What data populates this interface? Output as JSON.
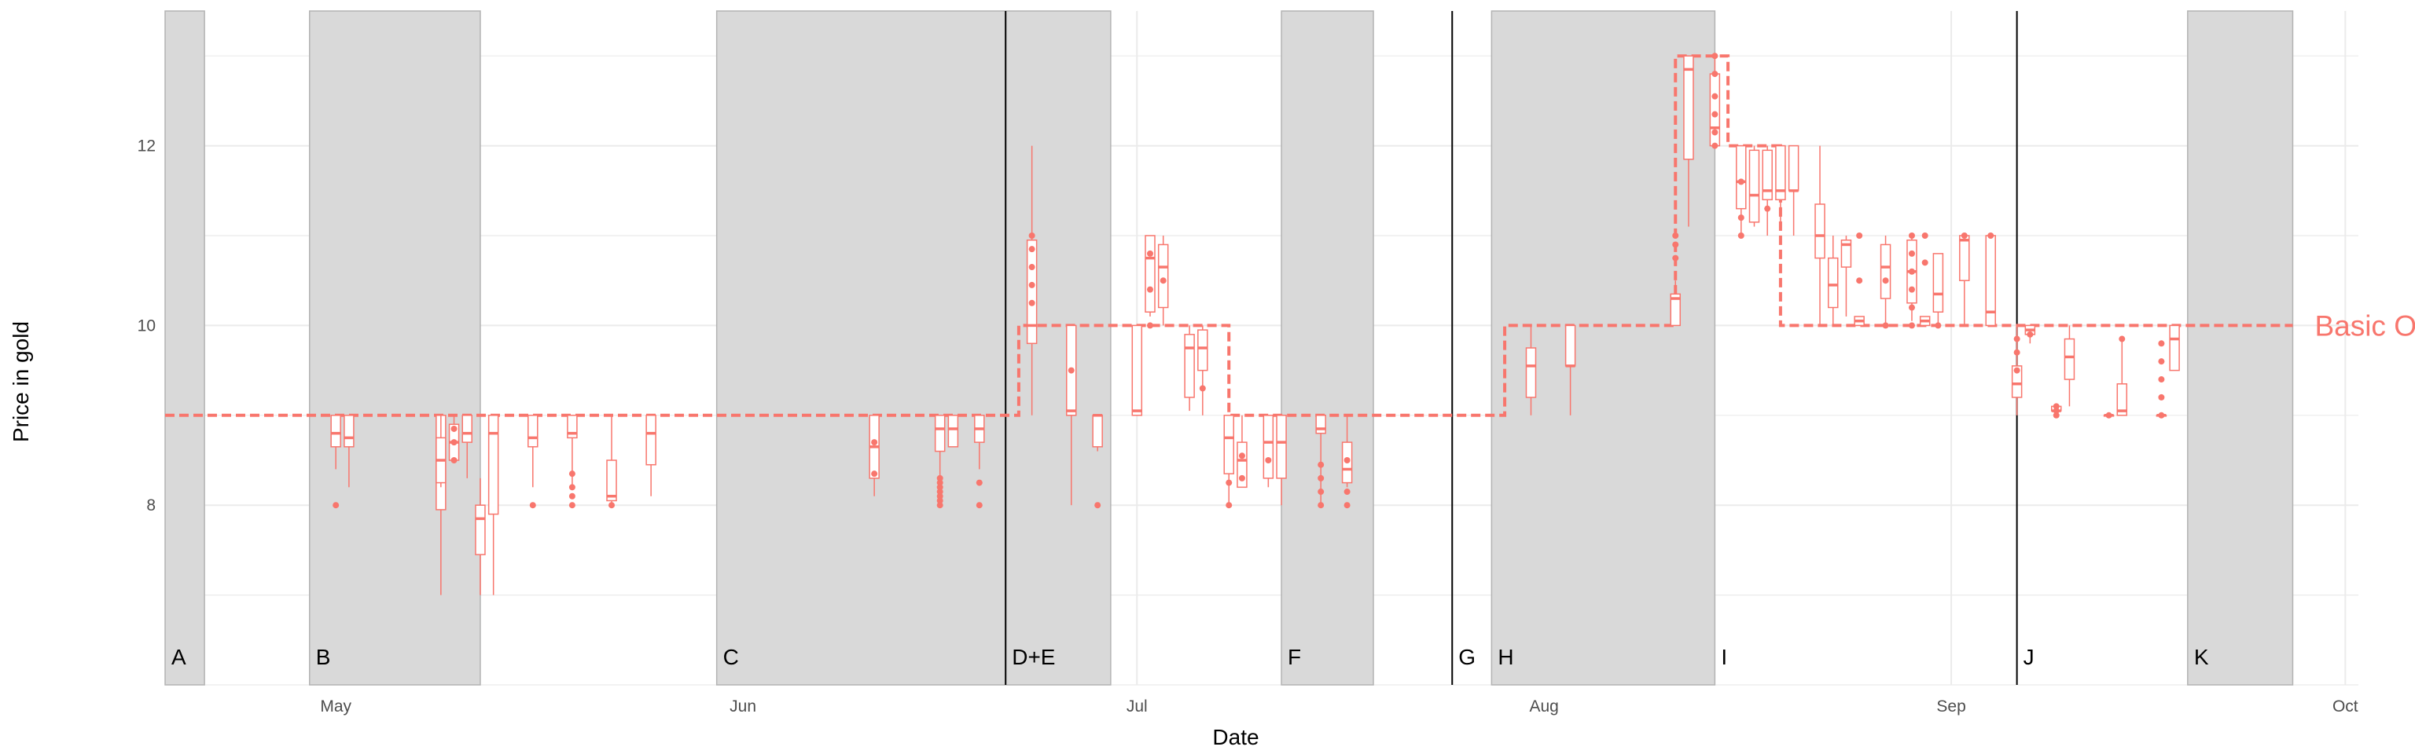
{
  "chart_data": {
    "type": "box",
    "title": "",
    "xlabel": "Date",
    "ylabel": "Price in gold",
    "ylim": [
      6,
      13.5
    ],
    "xlim": [
      "2022-04-18",
      "2022-10-02"
    ],
    "y_ticks": [
      8,
      10,
      12
    ],
    "x_ticks": [
      {
        "date": "2022-05-01",
        "label": "May"
      },
      {
        "date": "2022-06-01",
        "label": "Jun"
      },
      {
        "date": "2022-07-01",
        "label": "Jul"
      },
      {
        "date": "2022-08-01",
        "label": "Aug"
      },
      {
        "date": "2022-09-01",
        "label": "Sep"
      },
      {
        "date": "2022-10-01",
        "label": "Oct"
      }
    ],
    "grid": true,
    "colors": {
      "series": "#F8766D",
      "period_fill": "#d9d9d9",
      "period_edge": "#b3b3b3",
      "event_line": "#000000",
      "grid": "#ebebeb"
    },
    "periods": [
      {
        "label": "A",
        "start": "2022-04-18",
        "end": "2022-04-21"
      },
      {
        "label": "B",
        "start": "2022-04-29",
        "end": "2022-05-12"
      },
      {
        "label": "C",
        "start": "2022-05-30",
        "end": "2022-06-21"
      },
      {
        "label": "D+E",
        "start": "2022-06-21",
        "end": "2022-06-29"
      },
      {
        "label": "F",
        "start": "2022-07-12",
        "end": "2022-07-19"
      },
      {
        "label": "G",
        "start": "2022-07-25",
        "end": "2022-07-28"
      },
      {
        "label": "H",
        "start": "2022-07-28",
        "end": "2022-08-14"
      },
      {
        "label": "I",
        "start": "2022-08-14",
        "end": "2022-09-06"
      },
      {
        "label": "J",
        "start": "2022-09-06",
        "end": "2022-09-19"
      },
      {
        "label": "K",
        "start": "2022-09-19",
        "end": "2022-09-27"
      }
    ],
    "shaded_periods": [
      {
        "start": "2022-04-18",
        "end": "2022-04-21"
      },
      {
        "start": "2022-04-29",
        "end": "2022-05-12"
      },
      {
        "start": "2022-05-30",
        "end": "2022-06-29"
      },
      {
        "start": "2022-07-12",
        "end": "2022-07-19"
      },
      {
        "start": "2022-07-28",
        "end": "2022-08-14"
      },
      {
        "start": "2022-09-19",
        "end": "2022-09-27"
      }
    ],
    "event_lines": [
      "2022-06-21",
      "2022-07-25",
      "2022-09-06"
    ],
    "series": [
      {
        "name": "Basic Oreha",
        "step": [
          {
            "date": "2022-04-18",
            "value": 9
          },
          {
            "date": "2022-06-22",
            "value": 10
          },
          {
            "date": "2022-07-08",
            "value": 9
          },
          {
            "date": "2022-07-29",
            "value": 10
          },
          {
            "date": "2022-08-11",
            "value": 13
          },
          {
            "date": "2022-08-15",
            "value": 12
          },
          {
            "date": "2022-08-19",
            "value": 10
          },
          {
            "date": "2022-09-01",
            "value": 10
          },
          {
            "date": "2022-09-27",
            "value": 10
          }
        ],
        "boxes": [
          {
            "date": "2022-05-01",
            "min": 8.4,
            "q1": 8.65,
            "median": 8.8,
            "q3": 9.0,
            "max": 9.0,
            "outliers": [
              8.0
            ]
          },
          {
            "date": "2022-05-02",
            "min": 8.2,
            "q1": 8.65,
            "median": 8.75,
            "q3": 9.0,
            "max": 9.0,
            "outliers": []
          },
          {
            "date": "2022-05-09",
            "min": 7.0,
            "q1": 7.95,
            "median": 8.55,
            "q3": 9.0,
            "max": 9.0,
            "outliers": []
          },
          {
            "date": "2022-05-09",
            "min": 8.2,
            "q1": 8.25,
            "median": 8.5,
            "q3": 8.75,
            "max": 9.0,
            "outliers": []
          },
          {
            "date": "2022-05-10",
            "min": 8.5,
            "q1": 8.5,
            "median": 8.7,
            "q3": 8.9,
            "max": 9.0,
            "outliers": [
              8.5,
              8.7,
              8.85
            ]
          },
          {
            "date": "2022-05-11",
            "min": 8.3,
            "q1": 8.7,
            "median": 8.8,
            "q3": 9.0,
            "max": 9.0,
            "outliers": []
          },
          {
            "date": "2022-05-12",
            "min": 7.0,
            "q1": 7.45,
            "median": 7.85,
            "q3": 8.0,
            "max": 8.3,
            "outliers": []
          },
          {
            "date": "2022-05-13",
            "min": 7.0,
            "q1": 7.9,
            "median": 8.8,
            "q3": 9.0,
            "max": 9.0,
            "outliers": []
          },
          {
            "date": "2022-05-16",
            "min": 8.2,
            "q1": 8.65,
            "median": 8.75,
            "q3": 9.0,
            "max": 9.0,
            "outliers": [
              8.0
            ]
          },
          {
            "date": "2022-05-19",
            "min": 8.2,
            "q1": 8.75,
            "median": 8.8,
            "q3": 9.0,
            "max": 9.0,
            "outliers": [
              8.1,
              8.2,
              8.35,
              8.0
            ]
          },
          {
            "date": "2022-05-22",
            "min": 8.0,
            "q1": 8.05,
            "median": 8.1,
            "q3": 8.5,
            "max": 9.0,
            "outliers": [
              8.0
            ]
          },
          {
            "date": "2022-05-25",
            "min": 8.1,
            "q1": 8.45,
            "median": 8.8,
            "q3": 9.0,
            "max": 9.0,
            "outliers": []
          },
          {
            "date": "2022-06-11",
            "min": 8.1,
            "q1": 8.3,
            "median": 8.65,
            "q3": 9.0,
            "max": 9.0,
            "outliers": [
              8.35,
              8.7
            ]
          },
          {
            "date": "2022-06-16",
            "min": 8.1,
            "q1": 8.6,
            "median": 8.85,
            "q3": 9.0,
            "max": 9.0,
            "outliers": [
              8.0,
              8.05,
              8.1,
              8.15,
              8.2,
              8.25,
              8.3
            ]
          },
          {
            "date": "2022-06-17",
            "min": 8.65,
            "q1": 8.65,
            "median": 8.85,
            "q3": 9.0,
            "max": 9.0,
            "outliers": []
          },
          {
            "date": "2022-06-19",
            "min": 8.4,
            "q1": 8.7,
            "median": 8.85,
            "q3": 9.0,
            "max": 9.0,
            "outliers": [
              8.0,
              8.25
            ]
          },
          {
            "date": "2022-06-23",
            "min": 9.0,
            "q1": 9.8,
            "median": 10.0,
            "q3": 10.95,
            "max": 12.0,
            "outliers": [
              10.25,
              10.45,
              10.65,
              10.85,
              11.0
            ]
          },
          {
            "date": "2022-06-26",
            "min": 8.0,
            "q1": 9.0,
            "median": 9.05,
            "q3": 10.0,
            "max": 10.0,
            "outliers": [
              9.5
            ]
          },
          {
            "date": "2022-06-28",
            "min": 8.6,
            "q1": 8.65,
            "median": 9.0,
            "q3": 9.0,
            "max": 9.0,
            "outliers": [
              8.0
            ]
          },
          {
            "date": "2022-07-01",
            "min": 9.0,
            "q1": 9.0,
            "median": 9.05,
            "q3": 10.0,
            "max": 10.0,
            "outliers": []
          },
          {
            "date": "2022-07-02",
            "min": 10.1,
            "q1": 10.15,
            "median": 10.75,
            "q3": 11.0,
            "max": 11.0,
            "outliers": [
              10.0,
              10.4,
              10.8
            ]
          },
          {
            "date": "2022-07-03",
            "min": 10.0,
            "q1": 10.2,
            "median": 10.65,
            "q3": 10.9,
            "max": 11.0,
            "outliers": [
              10.5
            ]
          },
          {
            "date": "2022-07-05",
            "min": 9.05,
            "q1": 9.2,
            "median": 9.75,
            "q3": 9.9,
            "max": 10.0,
            "outliers": []
          },
          {
            "date": "2022-07-06",
            "min": 9.0,
            "q1": 9.5,
            "median": 9.75,
            "q3": 9.95,
            "max": 10.0,
            "outliers": [
              9.3
            ]
          },
          {
            "date": "2022-07-08",
            "min": 8.0,
            "q1": 8.35,
            "median": 8.75,
            "q3": 9.0,
            "max": 9.0,
            "outliers": [
              8.0,
              8.25
            ]
          },
          {
            "date": "2022-07-09",
            "min": 8.2,
            "q1": 8.2,
            "median": 8.5,
            "q3": 8.7,
            "max": 9.0,
            "outliers": [
              8.3,
              8.55
            ]
          },
          {
            "date": "2022-07-11",
            "min": 8.2,
            "q1": 8.3,
            "median": 8.7,
            "q3": 9.0,
            "max": 9.0,
            "outliers": [
              8.5
            ]
          },
          {
            "date": "2022-07-12",
            "min": 8.0,
            "q1": 8.3,
            "median": 8.7,
            "q3": 9.0,
            "max": 9.0,
            "outliers": []
          },
          {
            "date": "2022-07-15",
            "min": 8.0,
            "q1": 8.8,
            "median": 8.85,
            "q3": 9.0,
            "max": 9.0,
            "outliers": [
              8.0,
              8.15,
              8.3,
              8.45
            ]
          },
          {
            "date": "2022-07-17",
            "min": 8.2,
            "q1": 8.25,
            "median": 8.4,
            "q3": 8.7,
            "max": 9.0,
            "outliers": [
              8.0,
              8.15,
              8.5
            ]
          },
          {
            "date": "2022-07-31",
            "min": 9.0,
            "q1": 9.2,
            "median": 9.55,
            "q3": 9.75,
            "max": 10.0,
            "outliers": []
          },
          {
            "date": "2022-08-03",
            "min": 9.0,
            "q1": 9.55,
            "median": 9.55,
            "q3": 10.0,
            "max": 10.0,
            "outliers": []
          },
          {
            "date": "2022-08-11",
            "min": 10.0,
            "q1": 10.0,
            "median": 10.3,
            "q3": 10.35,
            "max": 10.5,
            "outliers": [
              10.75,
              10.9,
              11.0
            ]
          },
          {
            "date": "2022-08-12",
            "min": 11.1,
            "q1": 11.85,
            "median": 12.85,
            "q3": 13.0,
            "max": 13.0,
            "outliers": []
          },
          {
            "date": "2022-08-14",
            "min": 12.0,
            "q1": 12.0,
            "median": 12.2,
            "q3": 12.8,
            "max": 13.0,
            "outliers": [
              12.0,
              12.15,
              12.35,
              12.55,
              12.8,
              13.0
            ]
          },
          {
            "date": "2022-08-16",
            "min": 11.0,
            "q1": 11.3,
            "median": 11.6,
            "q3": 12.0,
            "max": 12.0,
            "outliers": [
              11.0,
              11.2,
              11.6
            ]
          },
          {
            "date": "2022-08-17",
            "min": 11.1,
            "q1": 11.15,
            "median": 11.45,
            "q3": 11.95,
            "max": 12.0,
            "outliers": []
          },
          {
            "date": "2022-08-18",
            "min": 11.0,
            "q1": 11.4,
            "median": 11.5,
            "q3": 11.95,
            "max": 12.0,
            "outliers": [
              11.3
            ]
          },
          {
            "date": "2022-08-19",
            "min": 11.1,
            "q1": 11.4,
            "median": 11.5,
            "q3": 12.0,
            "max": 12.0,
            "outliers": []
          },
          {
            "date": "2022-08-20",
            "min": 11.0,
            "q1": 11.5,
            "median": 11.5,
            "q3": 12.0,
            "max": 12.0,
            "outliers": []
          },
          {
            "date": "2022-08-22",
            "min": 10.0,
            "q1": 10.75,
            "median": 11.0,
            "q3": 11.35,
            "max": 12.0,
            "outliers": []
          },
          {
            "date": "2022-08-23",
            "min": 10.0,
            "q1": 10.2,
            "median": 10.45,
            "q3": 10.75,
            "max": 11.0,
            "outliers": []
          },
          {
            "date": "2022-08-24",
            "min": 10.1,
            "q1": 10.65,
            "median": 10.9,
            "q3": 10.95,
            "max": 11.0,
            "outliers": []
          },
          {
            "date": "2022-08-25",
            "min": 10.0,
            "q1": 10.0,
            "median": 10.05,
            "q3": 10.1,
            "max": 10.1,
            "outliers": [
              10.5,
              11.0
            ]
          },
          {
            "date": "2022-08-27",
            "min": 10.0,
            "q1": 10.3,
            "median": 10.65,
            "q3": 10.9,
            "max": 11.0,
            "outliers": [
              10.0,
              10.5
            ]
          },
          {
            "date": "2022-08-29",
            "min": 10.05,
            "q1": 10.25,
            "median": 10.6,
            "q3": 10.95,
            "max": 11.0,
            "outliers": [
              10.0,
              10.2,
              10.4,
              10.6,
              10.8,
              11.0
            ]
          },
          {
            "date": "2022-08-30",
            "min": 10.0,
            "q1": 10.0,
            "median": 10.05,
            "q3": 10.1,
            "max": 10.1,
            "outliers": [
              10.7,
              11.0
            ]
          },
          {
            "date": "2022-08-31",
            "min": 10.0,
            "q1": 10.15,
            "median": 10.35,
            "q3": 10.8,
            "max": 10.8,
            "outliers": [
              10.0
            ]
          },
          {
            "date": "2022-09-02",
            "min": 10.0,
            "q1": 10.5,
            "median": 10.95,
            "q3": 11.0,
            "max": 11.0,
            "outliers": [
              11.0
            ]
          },
          {
            "date": "2022-09-04",
            "min": 10.0,
            "q1": 10.0,
            "median": 10.15,
            "q3": 11.0,
            "max": 11.0,
            "outliers": [
              11.0
            ]
          },
          {
            "date": "2022-09-06",
            "min": 9.0,
            "q1": 9.2,
            "median": 9.35,
            "q3": 9.55,
            "max": 10.0,
            "outliers": [
              9.5,
              9.7,
              9.85
            ]
          },
          {
            "date": "2022-09-07",
            "min": 9.8,
            "q1": 9.9,
            "median": 9.95,
            "q3": 10.0,
            "max": 10.0,
            "outliers": [
              9.9
            ]
          },
          {
            "date": "2022-09-09",
            "min": 9.0,
            "q1": 9.05,
            "median": 9.05,
            "q3": 9.1,
            "max": 9.1,
            "outliers": [
              9.0,
              9.05,
              9.1
            ]
          },
          {
            "date": "2022-09-10",
            "min": 9.1,
            "q1": 9.4,
            "median": 9.65,
            "q3": 9.85,
            "max": 10.0,
            "outliers": []
          },
          {
            "date": "2022-09-13",
            "min": 9.0,
            "q1": 9.0,
            "median": 9.0,
            "q3": 9.0,
            "max": 9.0,
            "outliers": [
              9.0
            ]
          },
          {
            "date": "2022-09-14",
            "min": 9.0,
            "q1": 9.0,
            "median": 9.05,
            "q3": 9.35,
            "max": 9.85,
            "outliers": [
              9.85
            ]
          },
          {
            "date": "2022-09-17",
            "min": 9.0,
            "q1": 9.0,
            "median": 9.0,
            "q3": 9.0,
            "max": 9.0,
            "outliers": [
              9.0,
              9.2,
              9.4,
              9.6,
              9.8
            ]
          },
          {
            "date": "2022-09-18",
            "min": 9.5,
            "q1": 9.5,
            "median": 9.85,
            "q3": 10.0,
            "max": 10.0,
            "outliers": []
          }
        ]
      }
    ]
  }
}
